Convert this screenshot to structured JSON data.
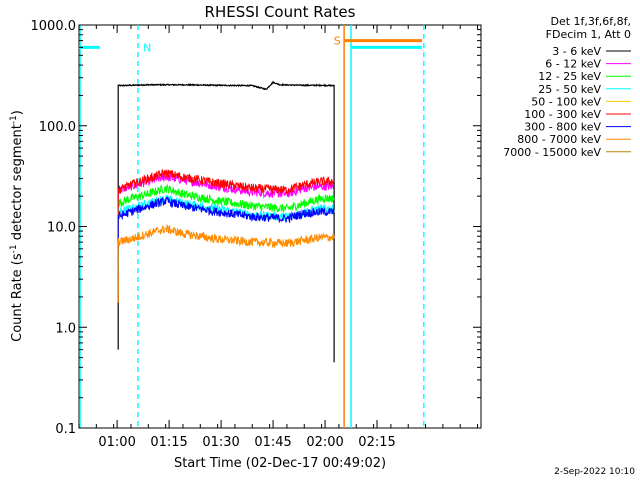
{
  "chart_data": {
    "type": "line",
    "title": "RHESSI Count Rates",
    "xlabel": "Start Time (02-Dec-17 00:49:02)",
    "ylabel": "Count Rate (s^-1 detector segment^-1)",
    "ylabel_parts": {
      "main": "Count Rate (s",
      "sup1": "-1",
      "mid": " detector segment",
      "sup2": "-1",
      "end": ")"
    },
    "yscale": "log",
    "ylim": [
      0.1,
      1000.0
    ],
    "xlim_minutes": [
      0,
      116
    ],
    "x_ticks": [
      {
        "label": "01:00",
        "minute": 11
      },
      {
        "label": "01:15",
        "minute": 26
      },
      {
        "label": "01:30",
        "minute": 41
      },
      {
        "label": "01:45",
        "minute": 56
      },
      {
        "label": "02:00",
        "minute": 71
      },
      {
        "label": "02:15",
        "minute": 86
      }
    ],
    "y_ticks": [
      {
        "label": "0.1",
        "value": 0.1
      },
      {
        "label": "1.0",
        "value": 1.0
      },
      {
        "label": "10.0",
        "value": 10.0
      },
      {
        "label": "100.0",
        "value": 100.0
      },
      {
        "label": "1000.0",
        "value": 1000.0
      }
    ],
    "legend_header": [
      "Det 1f,3f,6f,8f,",
      "FDecim 1, Att 0"
    ],
    "legend_position": "right",
    "grid": false,
    "series": [
      {
        "name": "3 - 6 keV",
        "color": "#000000",
        "x": [
          11.3,
          20,
          30,
          40,
          50,
          54,
          56,
          58,
          65,
          70,
          73.6
        ],
        "y": [
          250,
          255,
          255,
          252,
          250,
          230,
          270,
          255,
          252,
          252,
          250
        ]
      },
      {
        "name": "6 - 12 keV",
        "color": "#ff00ff",
        "x": [
          11.3,
          15,
          20,
          25,
          30,
          40,
          50,
          60,
          65,
          70,
          73.6
        ],
        "y": [
          23,
          25,
          28,
          31,
          29,
          25,
          22,
          21,
          24,
          25,
          25
        ]
      },
      {
        "name": "12 - 25 keV",
        "color": "#00ff00",
        "x": [
          11.3,
          15,
          20,
          25,
          30,
          40,
          50,
          60,
          65,
          70,
          73.6
        ],
        "y": [
          17,
          19,
          21,
          24,
          21,
          18,
          16,
          15,
          17,
          19,
          19
        ]
      },
      {
        "name": "25 - 50 keV",
        "color": "#00ffff",
        "x": [
          11.3,
          15,
          20,
          25,
          30,
          40,
          50,
          60,
          65,
          70,
          73.6
        ],
        "y": [
          14,
          15,
          17,
          19,
          17,
          15,
          13,
          12.5,
          14,
          15,
          15
        ]
      },
      {
        "name": "50 - 100 keV",
        "color": "#ffcc00",
        "x": [],
        "y": []
      },
      {
        "name": "100 - 300 keV",
        "color": "#ff0000",
        "x": [
          11.3,
          15,
          20,
          25,
          30,
          40,
          50,
          60,
          65,
          70,
          73.6
        ],
        "y": [
          23,
          26,
          30,
          34,
          31,
          27,
          24,
          23,
          26,
          28,
          28
        ]
      },
      {
        "name": "300 - 800 keV",
        "color": "#0000ff",
        "x": [
          11.3,
          15,
          20,
          25,
          30,
          40,
          50,
          60,
          65,
          70,
          73.6
        ],
        "y": [
          12.5,
          14,
          16,
          18,
          16,
          14,
          12.5,
          12,
          13.5,
          14,
          14
        ]
      },
      {
        "name": "800 - 7000 keV",
        "color": "#ff8c00",
        "x": [
          11.3,
          15,
          20,
          25,
          30,
          40,
          50,
          60,
          65,
          70,
          73.6
        ],
        "y": [
          7,
          7.5,
          8.5,
          9.5,
          8.5,
          7.5,
          7,
          6.8,
          7.3,
          7.8,
          7.8
        ]
      },
      {
        "name": "7000 - 15000 keV",
        "color": "#b8860b",
        "x": [],
        "y": []
      }
    ],
    "flag_bars": [
      {
        "color": "#00ffff",
        "x": [
          0,
          6
        ],
        "y_value": 600
      },
      {
        "color": "#00ffff",
        "x": [
          78.5,
          99
        ],
        "y_value": 600
      },
      {
        "color": "#ff8000",
        "x": [
          76.5,
          99
        ],
        "y_value": 700
      }
    ],
    "vlines": [
      {
        "minute": 0.3,
        "color": "#00ffff",
        "style": "solid"
      },
      {
        "minute": 17,
        "color": "#00ffff",
        "style": "dashed"
      },
      {
        "minute": 76.5,
        "color": "#ff8000",
        "style": "solid"
      },
      {
        "minute": 78.5,
        "color": "#00ffff",
        "style": "solid"
      },
      {
        "minute": 99.5,
        "color": "#00ffff",
        "style": "dashed"
      }
    ],
    "annotations": [
      {
        "text": "N",
        "color": "#00ffff",
        "minute": 18.5,
        "y_value": 600
      },
      {
        "text": "S",
        "color": "#ff8000",
        "minute": 73.5,
        "y_value": 700
      }
    ]
  },
  "footer": {
    "date_stamp": "2-Sep-2022 10:10"
  }
}
